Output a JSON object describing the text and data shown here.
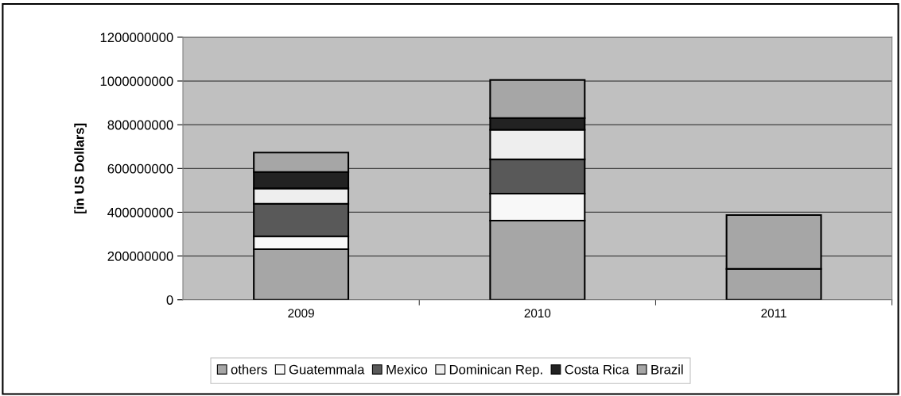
{
  "chart_data": {
    "type": "bar",
    "stacked": true,
    "ylabel": "[in US Dollars]",
    "categories": [
      "2009",
      "2010",
      "2011"
    ],
    "series": [
      {
        "name": "others",
        "color": "#a6a6a6",
        "values": [
          231000000,
          362000000,
          141000000
        ]
      },
      {
        "name": "Guatemmala",
        "color": "#f8f8f8",
        "values": [
          59000000,
          123000000,
          null
        ]
      },
      {
        "name": "Mexico",
        "color": "#595959",
        "values": [
          149000000,
          157000000,
          null
        ]
      },
      {
        "name": "Dominican Rep.",
        "color": "#eeeeee",
        "values": [
          70000000,
          135000000,
          null
        ]
      },
      {
        "name": "Costa Rica",
        "color": "#222222",
        "values": [
          75000000,
          53000000,
          null
        ]
      },
      {
        "name": "Brazil",
        "color": "#a6a6a6",
        "values": [
          89000000,
          175000000,
          246000000
        ]
      }
    ],
    "ylim": [
      0,
      1200000000
    ],
    "yticks": [
      0,
      200000000,
      400000000,
      600000000,
      800000000,
      1000000000,
      1200000000
    ],
    "grid": "y",
    "legend": "bottom"
  }
}
